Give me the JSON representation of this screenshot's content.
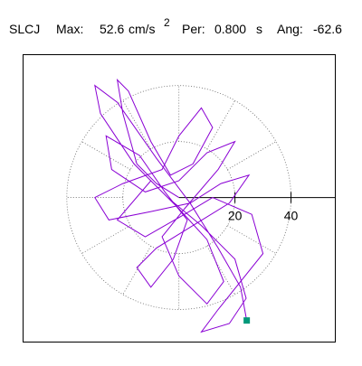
{
  "header": {
    "station": "SLCJ",
    "max_label": "Max:",
    "max_value": "52.6",
    "max_unit": "cm/s",
    "max_unit_sup": "2",
    "per_label": "Per:",
    "per_value": "0.800",
    "per_unit": "s",
    "ang_label": "Ang:",
    "ang_value": "-62.6"
  },
  "chart_data": {
    "type": "line",
    "color": "#8a00d4",
    "end_marker_color": "#00997a",
    "xlim": [
      -55.6,
      55.8
    ],
    "ylim": [
      -51.6,
      51
    ],
    "xticks": [
      20,
      40
    ],
    "x": [
      0,
      -8,
      -15,
      -20,
      -22,
      -18,
      -10,
      -3,
      5,
      12,
      8,
      0,
      -6,
      -20,
      -30,
      -25,
      -10,
      4,
      15,
      25,
      18,
      5,
      -8,
      -15,
      -10,
      -2,
      3,
      -5,
      -14,
      -26,
      -24,
      -12,
      0,
      10,
      20,
      14,
      2,
      -6,
      0,
      10,
      16,
      10,
      0,
      -10,
      -22,
      -12,
      2,
      12,
      26,
      30,
      22,
      14,
      8,
      18,
      24,
      20,
      8,
      -4,
      -16,
      -28,
      -30,
      -22,
      -8,
      4,
      14,
      22,
      24.2
    ],
    "values": [
      0,
      5,
      12,
      30,
      42,
      38,
      20,
      8,
      12,
      25,
      32,
      22,
      10,
      5,
      0,
      -8,
      -5,
      -2,
      5,
      8,
      -2,
      -10,
      -18,
      -25,
      -32,
      -22,
      -8,
      2,
      15,
      22,
      10,
      2,
      6,
      16,
      20,
      10,
      -4,
      -14,
      -28,
      -38,
      -30,
      -15,
      -4,
      6,
      -8,
      -14,
      -6,
      0,
      -6,
      -20,
      -30,
      -40,
      -48,
      -45,
      -36,
      -22,
      -10,
      0,
      12,
      30,
      40,
      34,
      14,
      -2,
      -18,
      -32,
      -43.9
    ]
  }
}
